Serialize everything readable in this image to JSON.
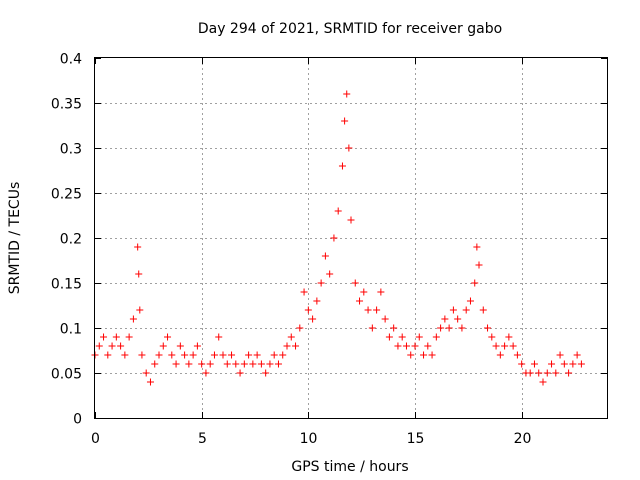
{
  "chart_data": {
    "type": "scatter",
    "title": "Day 294 of 2021, SRMTID for receiver gabo",
    "xlabel": "GPS time / hours",
    "ylabel": "SRMTID / TECUs",
    "xlim": [
      0,
      24
    ],
    "ylim": [
      0,
      0.4
    ],
    "xticks": [
      0,
      5,
      10,
      15,
      20
    ],
    "xtick_labels": [
      "0",
      "5",
      "10",
      "15",
      "20"
    ],
    "yticks": [
      0,
      0.05,
      0.1,
      0.15,
      0.2,
      0.25,
      0.3,
      0.35,
      0.4
    ],
    "ytick_labels": [
      "0",
      "0.05",
      "0.1",
      "0.15",
      "0.2",
      "0.25",
      "0.3",
      "0.35",
      "0.4"
    ],
    "grid": true,
    "marker": "plus",
    "color": "#ff0000",
    "series": [
      {
        "name": "SRMTID",
        "x": [
          0.0,
          0.2,
          0.4,
          0.6,
          0.8,
          1.0,
          1.2,
          1.4,
          1.6,
          1.8,
          2.0,
          2.05,
          2.1,
          2.2,
          2.4,
          2.6,
          2.8,
          3.0,
          3.2,
          3.4,
          3.6,
          3.8,
          4.0,
          4.2,
          4.4,
          4.6,
          4.8,
          5.0,
          5.2,
          5.4,
          5.6,
          5.8,
          6.0,
          6.2,
          6.4,
          6.6,
          6.8,
          7.0,
          7.2,
          7.4,
          7.6,
          7.8,
          8.0,
          8.2,
          8.4,
          8.6,
          8.8,
          9.0,
          9.2,
          9.4,
          9.6,
          9.8,
          10.0,
          10.2,
          10.4,
          10.6,
          10.8,
          11.0,
          11.2,
          11.4,
          11.6,
          11.7,
          11.8,
          11.9,
          12.0,
          12.2,
          12.4,
          12.6,
          12.8,
          13.0,
          13.2,
          13.4,
          13.6,
          13.8,
          14.0,
          14.2,
          14.4,
          14.6,
          14.8,
          15.0,
          15.2,
          15.4,
          15.6,
          15.8,
          16.0,
          16.2,
          16.4,
          16.6,
          16.8,
          17.0,
          17.2,
          17.4,
          17.6,
          17.8,
          17.9,
          18.0,
          18.2,
          18.4,
          18.6,
          18.8,
          19.0,
          19.2,
          19.4,
          19.6,
          19.8,
          20.0,
          20.2,
          20.4,
          20.6,
          20.8,
          21.0,
          21.2,
          21.4,
          21.6,
          21.8,
          22.0,
          22.2,
          22.4,
          22.6,
          22.8
        ],
        "y": [
          0.07,
          0.08,
          0.09,
          0.07,
          0.08,
          0.09,
          0.08,
          0.07,
          0.09,
          0.11,
          0.19,
          0.16,
          0.12,
          0.07,
          0.05,
          0.04,
          0.06,
          0.07,
          0.08,
          0.09,
          0.07,
          0.06,
          0.08,
          0.07,
          0.06,
          0.07,
          0.08,
          0.06,
          0.05,
          0.06,
          0.07,
          0.09,
          0.07,
          0.06,
          0.07,
          0.06,
          0.05,
          0.06,
          0.07,
          0.06,
          0.07,
          0.06,
          0.05,
          0.06,
          0.07,
          0.06,
          0.07,
          0.08,
          0.09,
          0.08,
          0.1,
          0.14,
          0.12,
          0.11,
          0.13,
          0.15,
          0.18,
          0.16,
          0.2,
          0.23,
          0.28,
          0.33,
          0.36,
          0.3,
          0.22,
          0.15,
          0.13,
          0.14,
          0.12,
          0.1,
          0.12,
          0.14,
          0.11,
          0.09,
          0.1,
          0.08,
          0.09,
          0.08,
          0.07,
          0.08,
          0.09,
          0.07,
          0.08,
          0.07,
          0.09,
          0.1,
          0.11,
          0.1,
          0.12,
          0.11,
          0.1,
          0.12,
          0.13,
          0.15,
          0.19,
          0.17,
          0.12,
          0.1,
          0.09,
          0.08,
          0.07,
          0.08,
          0.09,
          0.08,
          0.07,
          0.06,
          0.05,
          0.05,
          0.06,
          0.05,
          0.04,
          0.05,
          0.06,
          0.05,
          0.07,
          0.06,
          0.05,
          0.06,
          0.07,
          0.06
        ]
      }
    ]
  }
}
